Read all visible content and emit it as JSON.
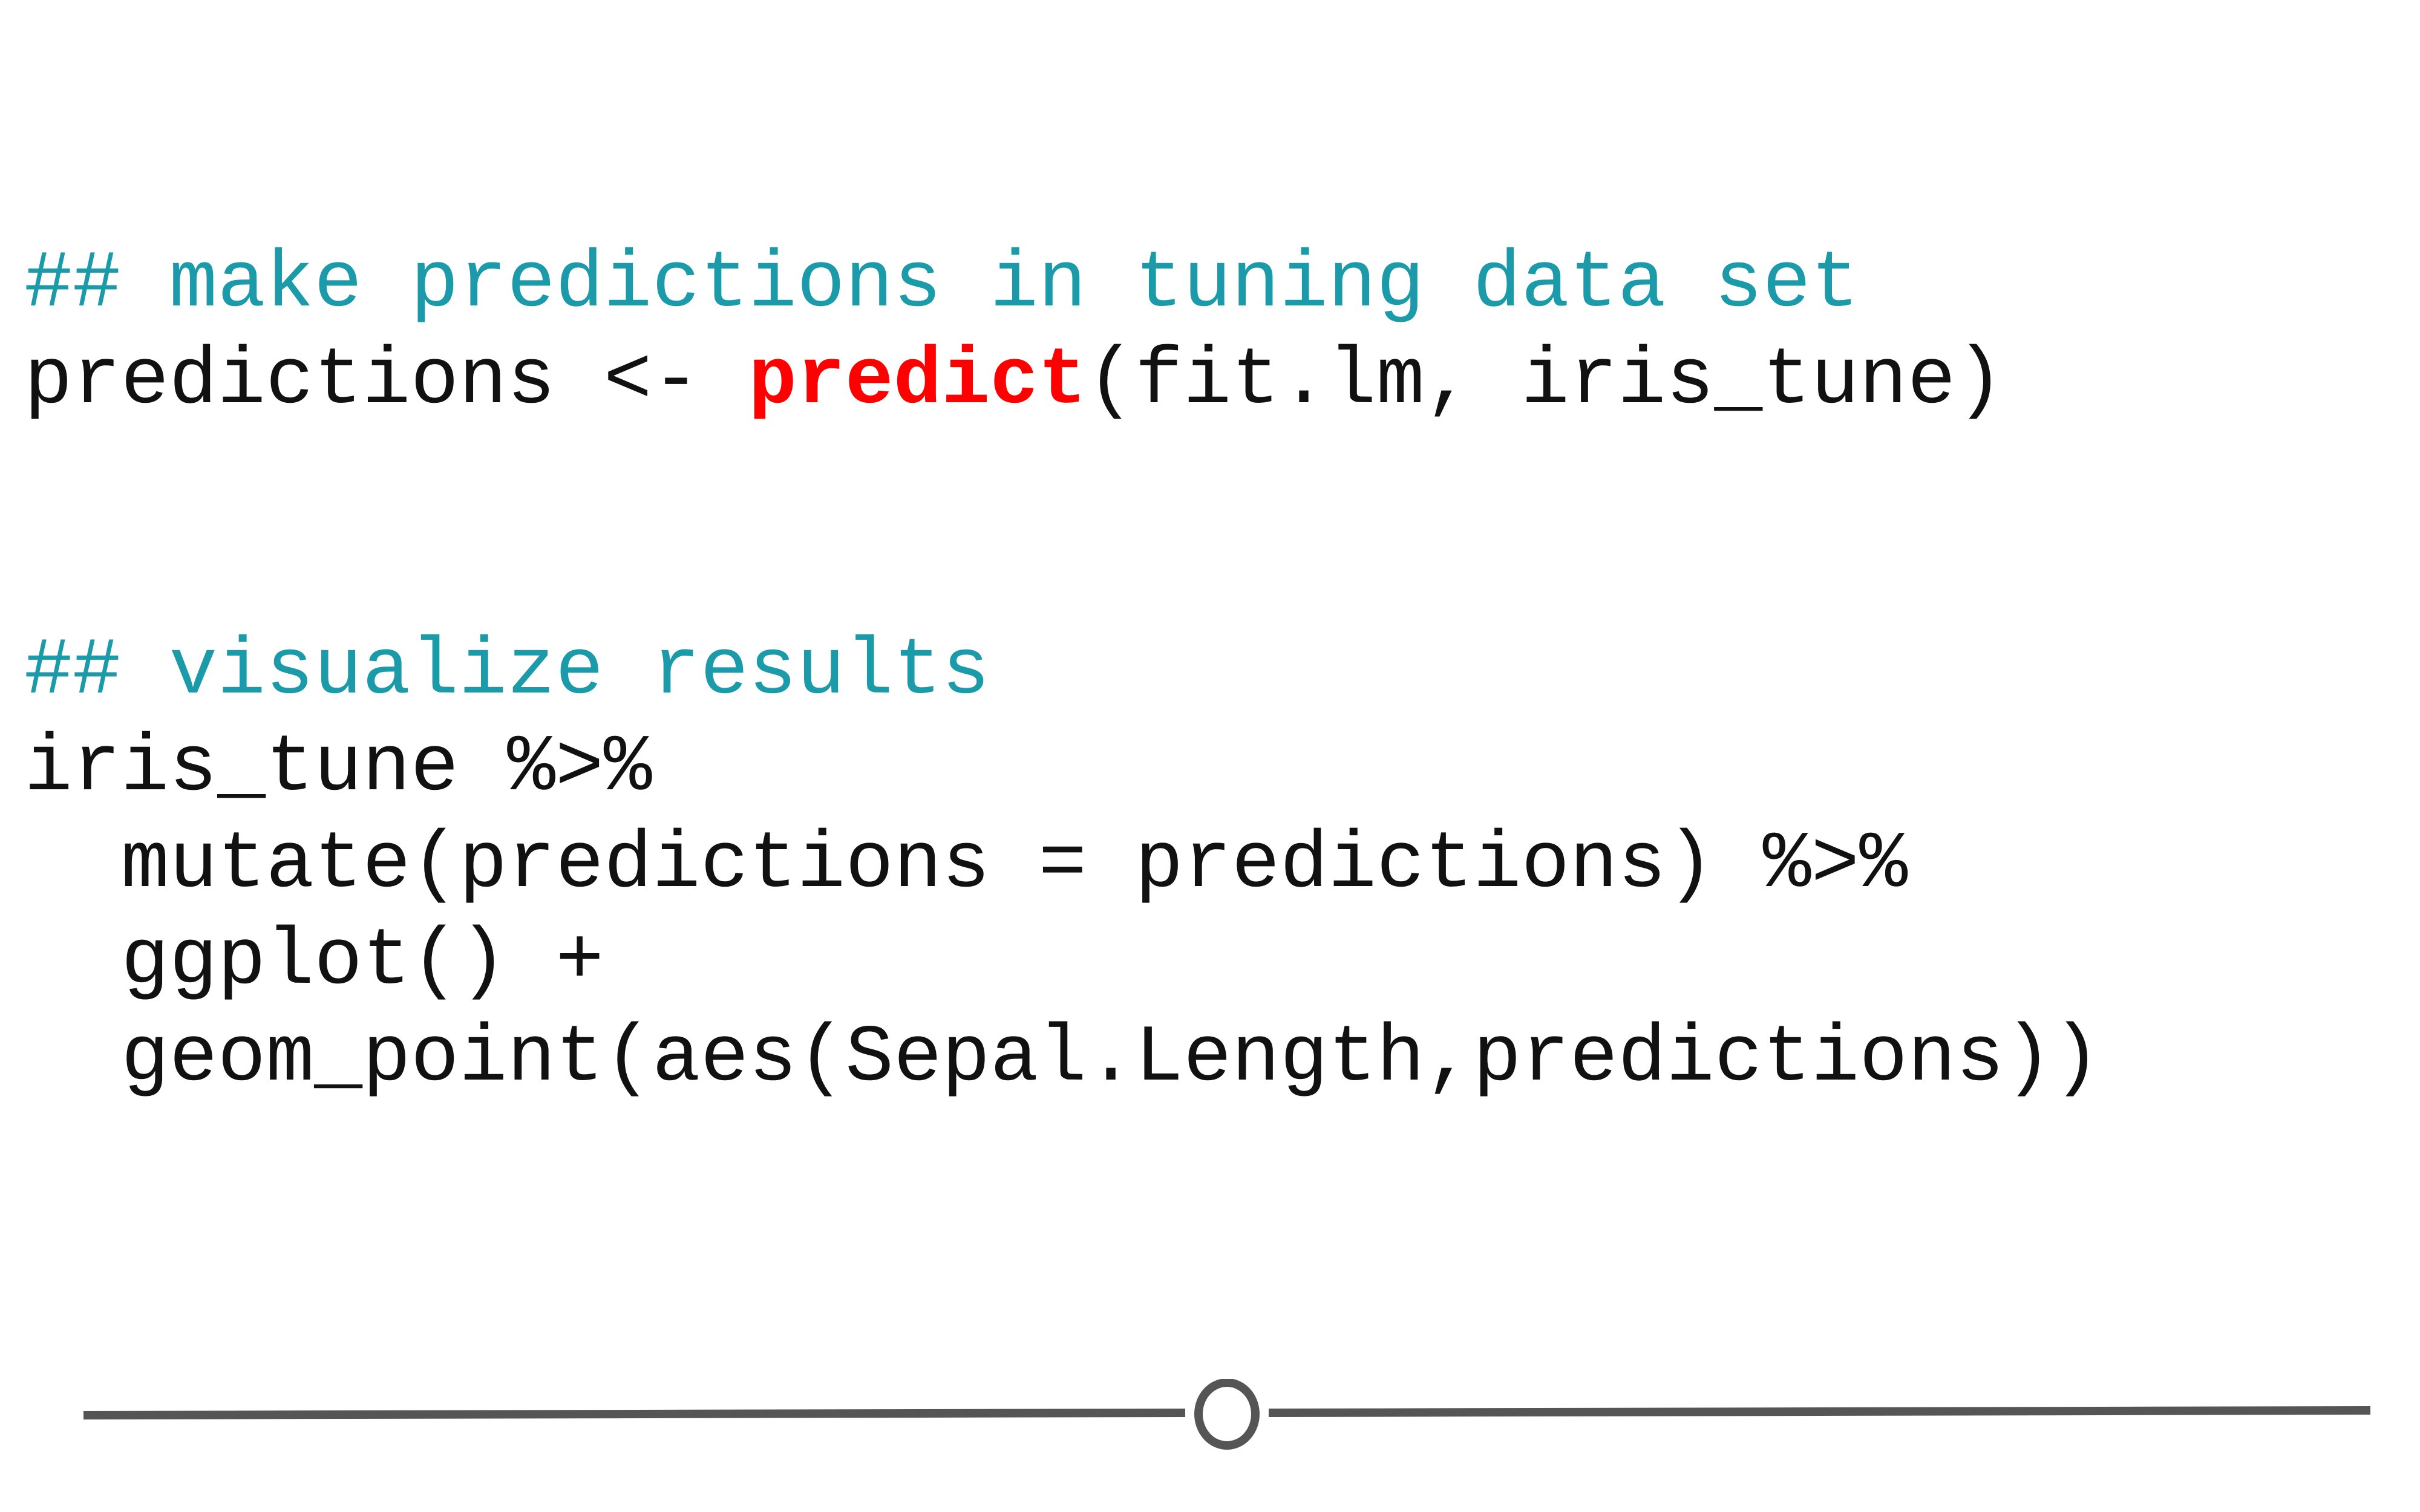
{
  "code": {
    "comment_1": "## make predictions in tuning data set",
    "line_predict_prefix": "predictions <- ",
    "line_predict_keyword": "predict",
    "line_predict_suffix": "(fit.lm, iris_tune)",
    "comment_2": "## visualize results",
    "line_pipe_1": "iris_tune %>%",
    "line_mutate": "mutate(predictions = predictions) %>%",
    "line_ggplot": "ggplot() +",
    "line_geom": "geom_point(aes(Sepal.Length,predictions))"
  },
  "slider": {
    "position_fraction": 0.5
  },
  "colors": {
    "comment": "#1b9aaa",
    "keyword": "#ff0000",
    "code_text": "#111111",
    "slider": "#555555"
  }
}
